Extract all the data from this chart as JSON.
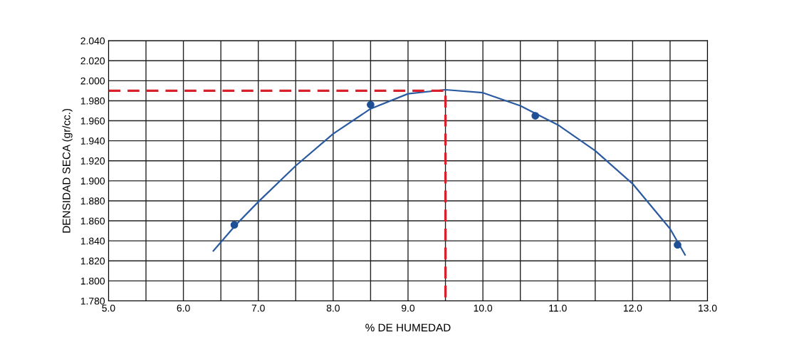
{
  "chart_data": {
    "type": "scatter",
    "xlabel": "% DE HUMEDAD",
    "ylabel": "DENSIDAD SECA (gr/cc.)",
    "xlim": [
      5.0,
      13.0
    ],
    "ylim": [
      1.78,
      2.04
    ],
    "xticks": [
      {
        "value": 5.0,
        "label": "5.0"
      },
      {
        "value": 5.5,
        "label": null
      },
      {
        "value": 6.0,
        "label": "6.0"
      },
      {
        "value": 6.5,
        "label": null
      },
      {
        "value": 7.0,
        "label": "7.0"
      },
      {
        "value": 7.5,
        "label": null
      },
      {
        "value": 8.0,
        "label": "8.0"
      },
      {
        "value": 8.5,
        "label": null
      },
      {
        "value": 9.0,
        "label": "9.0"
      },
      {
        "value": 9.5,
        "label": null
      },
      {
        "value": 10.0,
        "label": "10.0"
      },
      {
        "value": 10.5,
        "label": null
      },
      {
        "value": 11.0,
        "label": "11.0"
      },
      {
        "value": 11.5,
        "label": null
      },
      {
        "value": 12.0,
        "label": "12.0"
      },
      {
        "value": 12.5,
        "label": null
      },
      {
        "value": 13.0,
        "label": "13.0"
      }
    ],
    "yticks": [
      {
        "value": 1.78,
        "label": "1.780"
      },
      {
        "value": 1.8,
        "label": "1.800"
      },
      {
        "value": 1.82,
        "label": "1.820"
      },
      {
        "value": 1.84,
        "label": "1.840"
      },
      {
        "value": 1.86,
        "label": "1.860"
      },
      {
        "value": 1.88,
        "label": "1.880"
      },
      {
        "value": 1.9,
        "label": "1.900"
      },
      {
        "value": 1.92,
        "label": "1.920"
      },
      {
        "value": 1.94,
        "label": "1.940"
      },
      {
        "value": 1.96,
        "label": "1.960"
      },
      {
        "value": 1.98,
        "label": "1.980"
      },
      {
        "value": 2.0,
        "label": "2.000"
      },
      {
        "value": 2.02,
        "label": "2.020"
      },
      {
        "value": 2.04,
        "label": "2.040"
      }
    ],
    "grid": true,
    "legend": false,
    "series": [
      {
        "type": "line",
        "color": "#2a5aa0",
        "marker": "none",
        "line_style": "solid",
        "x": [
          6.4,
          6.7,
          7.0,
          7.5,
          8.0,
          8.5,
          9.0,
          9.5,
          10.0,
          10.5,
          11.0,
          11.5,
          12.0,
          12.5,
          12.7
        ],
        "values": [
          1.83,
          1.856,
          1.879,
          1.915,
          1.947,
          1.972,
          1.987,
          1.991,
          1.988,
          1.975,
          1.956,
          1.93,
          1.897,
          1.852,
          1.826
        ]
      },
      {
        "color": "#1f5096",
        "marker": "circle",
        "x": [
          6.68,
          8.5,
          10.7,
          12.6
        ],
        "values": [
          1.856,
          1.976,
          1.965,
          1.836
        ]
      },
      {
        "type": "line",
        "color": "#d8202a",
        "marker": "none",
        "line_style": "dashed",
        "x": [
          5.0,
          9.5,
          9.5
        ],
        "values": [
          1.99,
          1.99,
          1.78
        ]
      }
    ]
  }
}
